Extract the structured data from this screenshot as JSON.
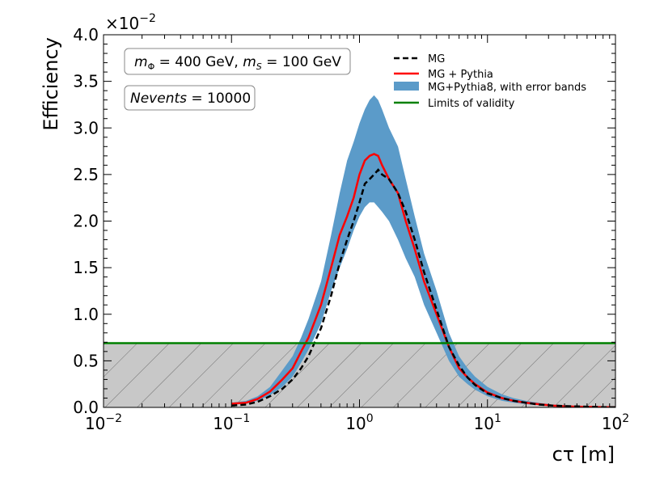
{
  "chart_data": {
    "type": "line",
    "xlabel": "cτ [m]",
    "ylabel": "Efficiency",
    "y_multiplier_label": "×10",
    "y_multiplier_exponent": "−2",
    "x_scale": "log",
    "xlim": [
      0.01,
      100
    ],
    "ylim": [
      0,
      4.0
    ],
    "x_tick_base": "10",
    "x_tick_exponents": [
      "−2",
      "−1",
      "0",
      "1",
      "2"
    ],
    "x_ticks": [
      0.01,
      0.1,
      1,
      10,
      100
    ],
    "y_ticks": [
      0.0,
      0.5,
      1.0,
      1.5,
      2.0,
      2.5,
      3.0,
      3.5,
      4.0
    ],
    "y_tick_labels": [
      "0.0",
      "0.5",
      "1.0",
      "1.5",
      "2.0",
      "2.5",
      "3.0",
      "3.5",
      "4.0"
    ],
    "grid": false,
    "legend_position": "top-right",
    "annotations": {
      "mass_prefix": "m",
      "mass_phi_sub": "Φ",
      "mass_phi_value": " = 400 GeV, ",
      "mass_s_sub": "S",
      "mass_s_value": " = 100 GeV",
      "nevents_name": "Nevents",
      "nevents_value": " = 10000"
    },
    "x": [
      0.1,
      0.13,
      0.16,
      0.2,
      0.25,
      0.3,
      0.35,
      0.4,
      0.5,
      0.6,
      0.7,
      0.8,
      0.9,
      1.0,
      1.1,
      1.2,
      1.3,
      1.4,
      1.5,
      1.7,
      2.0,
      2.3,
      2.7,
      3.2,
      4.0,
      5.0,
      6.0,
      7.0,
      8.0,
      10.0,
      13.0,
      16.0,
      20.0,
      25.0,
      32.0,
      40.0,
      50.0,
      65.0,
      80.0,
      100.0
    ],
    "series": [
      {
        "name": "MG",
        "style": "dashed",
        "color": "#000000",
        "values": [
          0.02,
          0.03,
          0.06,
          0.12,
          0.2,
          0.3,
          0.42,
          0.55,
          0.85,
          1.2,
          1.55,
          1.8,
          2.0,
          2.2,
          2.4,
          2.45,
          2.5,
          2.55,
          2.5,
          2.45,
          2.3,
          2.1,
          1.8,
          1.45,
          1.05,
          0.65,
          0.45,
          0.32,
          0.24,
          0.15,
          0.1,
          0.07,
          0.05,
          0.03,
          0.02,
          0.015,
          0.01,
          0.006,
          0.003,
          0.001
        ]
      },
      {
        "name": "MG + Pythia",
        "style": "solid",
        "color": "#ff0000",
        "values": [
          0.04,
          0.05,
          0.09,
          0.17,
          0.3,
          0.42,
          0.6,
          0.75,
          1.1,
          1.5,
          1.85,
          2.05,
          2.25,
          2.5,
          2.65,
          2.7,
          2.72,
          2.7,
          2.6,
          2.45,
          2.3,
          2.0,
          1.7,
          1.35,
          1.0,
          0.65,
          0.42,
          0.32,
          0.25,
          0.16,
          0.1,
          0.07,
          0.05,
          0.035,
          0.02,
          0.012,
          0.008,
          0.005,
          0.003,
          0.002
        ]
      },
      {
        "name": "MG+Pythia8, with error bands",
        "style": "band",
        "color": "#5b9bc9",
        "lower": [
          0.03,
          0.04,
          0.07,
          0.13,
          0.22,
          0.33,
          0.48,
          0.62,
          0.9,
          1.25,
          1.5,
          1.7,
          1.9,
          2.05,
          2.15,
          2.2,
          2.2,
          2.15,
          2.1,
          2.0,
          1.8,
          1.6,
          1.4,
          1.1,
          0.8,
          0.5,
          0.33,
          0.25,
          0.19,
          0.12,
          0.07,
          0.05,
          0.035,
          0.025,
          0.015,
          0.01,
          0.006,
          0.004,
          0.002,
          0.001
        ],
        "upper": [
          0.05,
          0.07,
          0.12,
          0.22,
          0.4,
          0.55,
          0.75,
          0.95,
          1.35,
          1.85,
          2.3,
          2.65,
          2.85,
          3.05,
          3.2,
          3.3,
          3.35,
          3.3,
          3.2,
          3.0,
          2.8,
          2.45,
          2.05,
          1.65,
          1.25,
          0.8,
          0.55,
          0.42,
          0.33,
          0.22,
          0.14,
          0.1,
          0.07,
          0.05,
          0.03,
          0.02,
          0.012,
          0.008,
          0.005,
          0.003
        ]
      },
      {
        "name": "Limits of validity",
        "style": "hline",
        "color": "#008000",
        "value": 0.69
      }
    ]
  }
}
